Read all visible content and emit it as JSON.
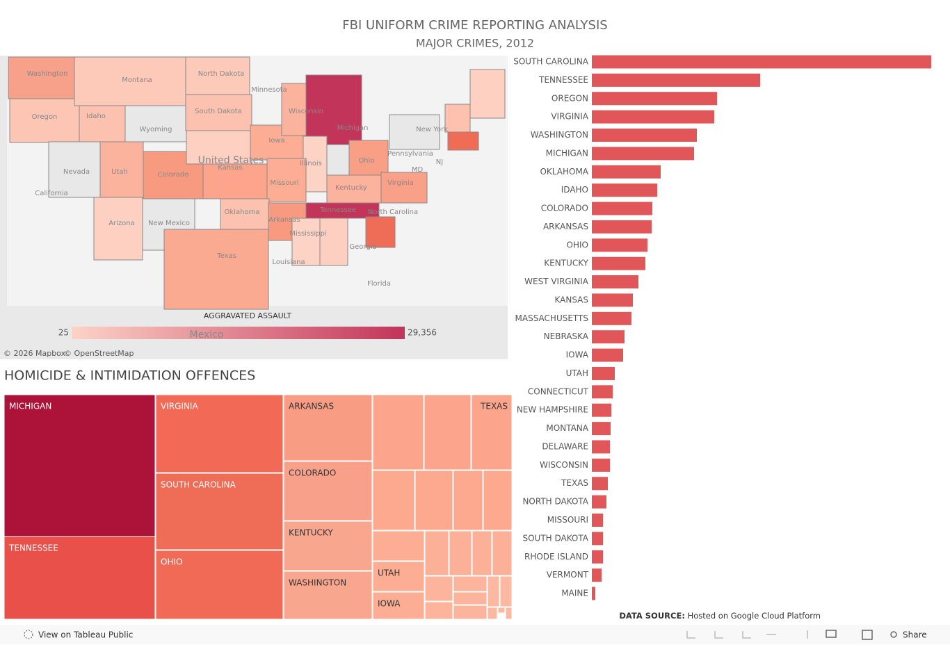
{
  "title": "FBI UNIFORM CRIME REPORTING ANALYSIS",
  "subtitle": "MAJOR CRIMES, 2012",
  "map": {
    "labels": [
      "Washington",
      "Montana",
      "North Dakota",
      "Minnesota",
      "Oregon",
      "Idaho",
      "Wyoming",
      "South Dakota",
      "Wisconsin",
      "Michigan",
      "New York",
      "Nevada",
      "Utah",
      "Colorado",
      "United States",
      "Iowa",
      "Illinois",
      "Ohio",
      "Pennsylvania",
      "MD",
      "NJ",
      "California",
      "Kansas",
      "Missouri",
      "Kentucky",
      "Virginia",
      "Arizona",
      "New Mexico",
      "Oklahoma",
      "Arkansas",
      "Tennessee",
      "North Carolina",
      "Mississippi",
      "Georgia",
      "Texas",
      "Louisiana",
      "Florida",
      "Mexico"
    ],
    "legend": {
      "title": "AGGRAVATED ASSAULT",
      "min": 25,
      "max": {
        "value": 29356,
        "label": "29,356"
      },
      "colors": [
        "#fdd3c6",
        "#c2345a"
      ]
    },
    "attribution": [
      "© 2026 Mapbox",
      "© OpenStreetMap"
    ]
  },
  "section_title": "HOMICIDE & INTIMIDATION OFFENCES",
  "chart_data": [
    {
      "type": "bar",
      "orientation": "horizontal",
      "color": "#e15759",
      "xlim": [
        0,
        488
      ],
      "categories": [
        "SOUTH CAROLINA",
        "TENNESSEE",
        "OREGON",
        "VIRGINIA",
        "WASHINGTON",
        "MICHIGAN",
        "OKLAHOMA",
        "IDAHO",
        "COLORADO",
        "ARKANSAS",
        "OHIO",
        "KENTUCKY",
        "WEST VIRGINIA",
        "KANSAS",
        "MASSACHUSETTS",
        "NEBRASKA",
        "IOWA",
        "UTAH",
        "CONNECTICUT",
        "NEW HAMPSHIRE",
        "MONTANA",
        "DELAWARE",
        "WISCONSIN",
        "TEXAS",
        "NORTH DAKOTA",
        "MISSOURI",
        "SOUTH DAKOTA",
        "RHODE ISLAND",
        "VERMONT",
        "MAINE"
      ],
      "values": [
        488,
        242,
        180,
        176,
        151,
        147,
        99,
        94,
        87,
        86,
        80,
        77,
        67,
        59,
        57,
        47,
        45,
        33,
        30,
        28,
        27,
        26,
        26,
        23,
        21,
        16,
        16,
        16,
        14,
        5
      ]
    },
    {
      "type": "treemap",
      "categories": [
        "MICHIGAN",
        "TENNESSEE",
        "VIRGINIA",
        "SOUTH CAROLINA",
        "OHIO",
        "ARKANSAS",
        "COLORADO",
        "KENTUCKY",
        "WASHINGTON",
        null,
        null,
        "TEXAS",
        null,
        null,
        null,
        null,
        null,
        "UTAH",
        "IOWA",
        null,
        null,
        null,
        null,
        null,
        null,
        null,
        null,
        null,
        null,
        null,
        null,
        null,
        null
      ],
      "values": [
        44.3,
        25.8,
        20.5,
        20.1,
        18.1,
        12.1,
        10.8,
        9.0,
        8.8,
        7.9,
        7.2,
        6.3,
        5.2,
        4.6,
        3.6,
        3.5,
        3.2,
        3.2,
        2.9,
        2.2,
        2.0,
        1.8,
        1.8,
        1.4,
        1.0,
        1.1,
        0.9,
        1.0,
        0.7,
        0.7,
        0.2,
        0.1,
        0.2
      ],
      "colors": [
        "#ad1238",
        "#e9504a",
        "#f26a56",
        "#ef6d57",
        "#f16a55",
        "#f89c84",
        "#f9a08a",
        "#f9a68f",
        "#f9a68f",
        "#fca48c",
        "#fca48c",
        "#fca48c",
        "#fca98f",
        "#fca98f",
        "#fca98f",
        "#fca98f",
        "#fcad94",
        "#fcad94",
        "#fcad94",
        "#fcb098",
        "#fcb098",
        "#fcb098",
        "#fcb098",
        "#fdb49d",
        "#fdb49d",
        "#fdb49d",
        "#fdb49d",
        "#fdb49d",
        "#fdb8a2",
        "#fdb8a2",
        "#fdb8a2",
        "#fdb8a2",
        "#fdb8a2"
      ]
    }
  ],
  "source": {
    "label": "DATA SOURCE:",
    "text": "Hosted on Google Cloud Platform"
  },
  "toolbar": {
    "view": "View on Tableau Public",
    "share": "Share"
  }
}
